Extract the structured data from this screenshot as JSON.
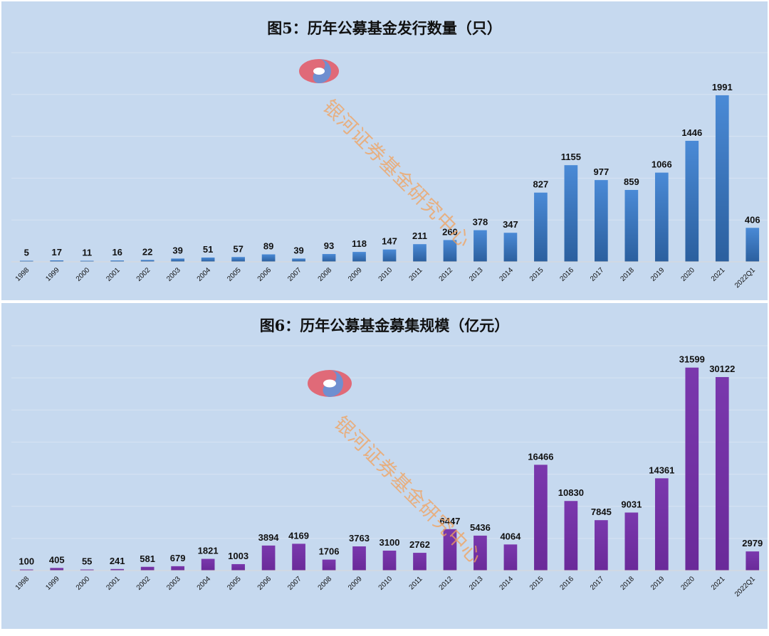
{
  "charts": {
    "chart1": {
      "title": "图5：历年公募基金发行数量（只）"
    },
    "chart2": {
      "title": "图6：历年公募基金募集规模（亿元）"
    }
  },
  "watermark": {
    "text": "银河证券基金研究中心",
    "icon": "galaxy-securities-logo"
  },
  "colors": {
    "background": "#c6d9ef",
    "chart1_bar": "#3a7bc8",
    "chart2_bar": "#7030a0",
    "watermark": "#f2a15c"
  },
  "chart_data": [
    {
      "type": "bar",
      "title": "图5：历年公募基金发行数量（只）",
      "categories": [
        "1998",
        "1999",
        "2000",
        "2001",
        "2002",
        "2003",
        "2004",
        "2005",
        "2006",
        "2007",
        "2008",
        "2009",
        "2010",
        "2011",
        "2012",
        "2013",
        "2014",
        "2015",
        "2016",
        "2017",
        "2018",
        "2019",
        "2020",
        "2021",
        "2022Q1"
      ],
      "values": [
        5,
        17,
        11,
        16,
        22,
        39,
        51,
        57,
        89,
        39,
        93,
        118,
        147,
        211,
        260,
        378,
        347,
        827,
        1155,
        977,
        859,
        1066,
        1446,
        1991,
        406
      ],
      "ylim": [
        0,
        2500
      ],
      "grid": true
    },
    {
      "type": "bar",
      "title": "图6：历年公募基金募集规模（亿元）",
      "categories": [
        "1998",
        "1999",
        "2000",
        "2001",
        "2002",
        "2003",
        "2004",
        "2005",
        "2006",
        "2007",
        "2008",
        "2009",
        "2010",
        "2011",
        "2012",
        "2013",
        "2014",
        "2015",
        "2016",
        "2017",
        "2018",
        "2019",
        "2020",
        "2021",
        "2022Q1"
      ],
      "values": [
        100,
        405,
        55,
        241,
        581,
        679,
        1821,
        1003,
        3894,
        4169,
        1706,
        3763,
        3100,
        2762,
        6447,
        5436,
        4064,
        16466,
        10830,
        7845,
        9031,
        14361,
        31599,
        30122,
        2979
      ],
      "ylim": [
        0,
        35000
      ],
      "grid": true
    }
  ]
}
